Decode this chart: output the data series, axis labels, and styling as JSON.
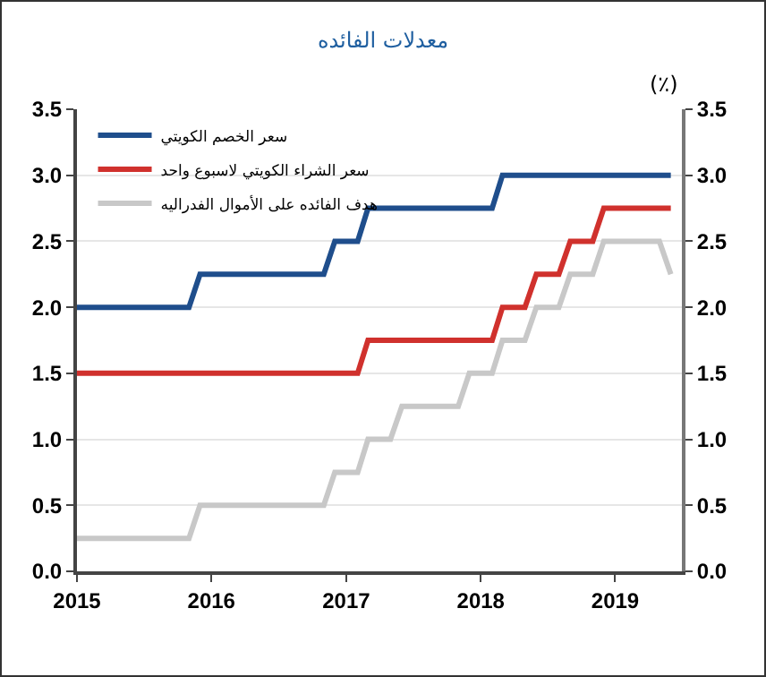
{
  "chart_data": {
    "type": "line",
    "title": "معدلات الفائده",
    "y2label": "(٪)",
    "xlim": [
      "2015-01",
      "2019-07"
    ],
    "xticks": [
      "2015",
      "2016",
      "2017",
      "2018",
      "2019"
    ],
    "ylim": [
      0,
      3.5
    ],
    "yticks": [
      {
        "value": 0,
        "label": "0.0"
      },
      0.5,
      {
        "value": 1,
        "label": "1.0"
      },
      1.5,
      {
        "value": 2,
        "label": "2.0"
      },
      2.5,
      {
        "value": 3,
        "label": "3.0"
      },
      3.5
    ],
    "y2lim": [
      0,
      3.5
    ],
    "y2ticks": [
      {
        "value": 0,
        "label": "0.0"
      },
      0.5,
      {
        "value": 1,
        "label": "1.0"
      },
      1.5,
      {
        "value": 2,
        "label": "2.0"
      },
      2.5,
      {
        "value": 3,
        "label": "3.0"
      },
      3.5
    ],
    "grid": "y",
    "legend": "top left",
    "line_style": "solid",
    "marker": "none",
    "series": [
      {
        "name": "سعر الخصم الكويتي",
        "color": "#1f4e8c",
        "x": [
          "2015-01",
          "2015-11",
          "2015-12",
          "2016-11",
          "2016-12",
          "2017-02",
          "2017-03",
          "2018-02",
          "2018-03",
          "2019-06"
        ],
        "values": [
          2,
          2,
          2.25,
          2.25,
          2.5,
          2.5,
          2.75,
          2.75,
          3,
          3
        ]
      },
      {
        "name": "سعر الشراء الكويتي لاسبوع واحد",
        "color": "#d0312d",
        "x": [
          "2015-01",
          "2017-02",
          "2017-03",
          "2018-02",
          "2018-03",
          "2018-05",
          "2018-06",
          "2018-08",
          "2018-09",
          "2018-11",
          "2018-12",
          "2019-06"
        ],
        "values": [
          1.5,
          1.5,
          1.75,
          1.75,
          2,
          2,
          2.25,
          2.25,
          2.5,
          2.5,
          2.75,
          2.75
        ]
      },
      {
        "name": "هدف الفائده على الأموال الفدراليه",
        "color": "#c8c8c8",
        "x": [
          "2015-01",
          "2015-11",
          "2015-12",
          "2016-11",
          "2016-12",
          "2017-02",
          "2017-03",
          "2017-05",
          "2017-06",
          "2017-11",
          "2017-12",
          "2018-02",
          "2018-03",
          "2018-05",
          "2018-06",
          "2018-08",
          "2018-09",
          "2018-11",
          "2018-12",
          "2019-05",
          "2019-06"
        ],
        "values": [
          0.25,
          0.25,
          0.5,
          0.5,
          0.75,
          0.75,
          1,
          1,
          1.25,
          1.25,
          1.5,
          1.5,
          1.75,
          1.75,
          2,
          2,
          2.25,
          2.25,
          2.5,
          2.5,
          2.25
        ]
      }
    ]
  }
}
